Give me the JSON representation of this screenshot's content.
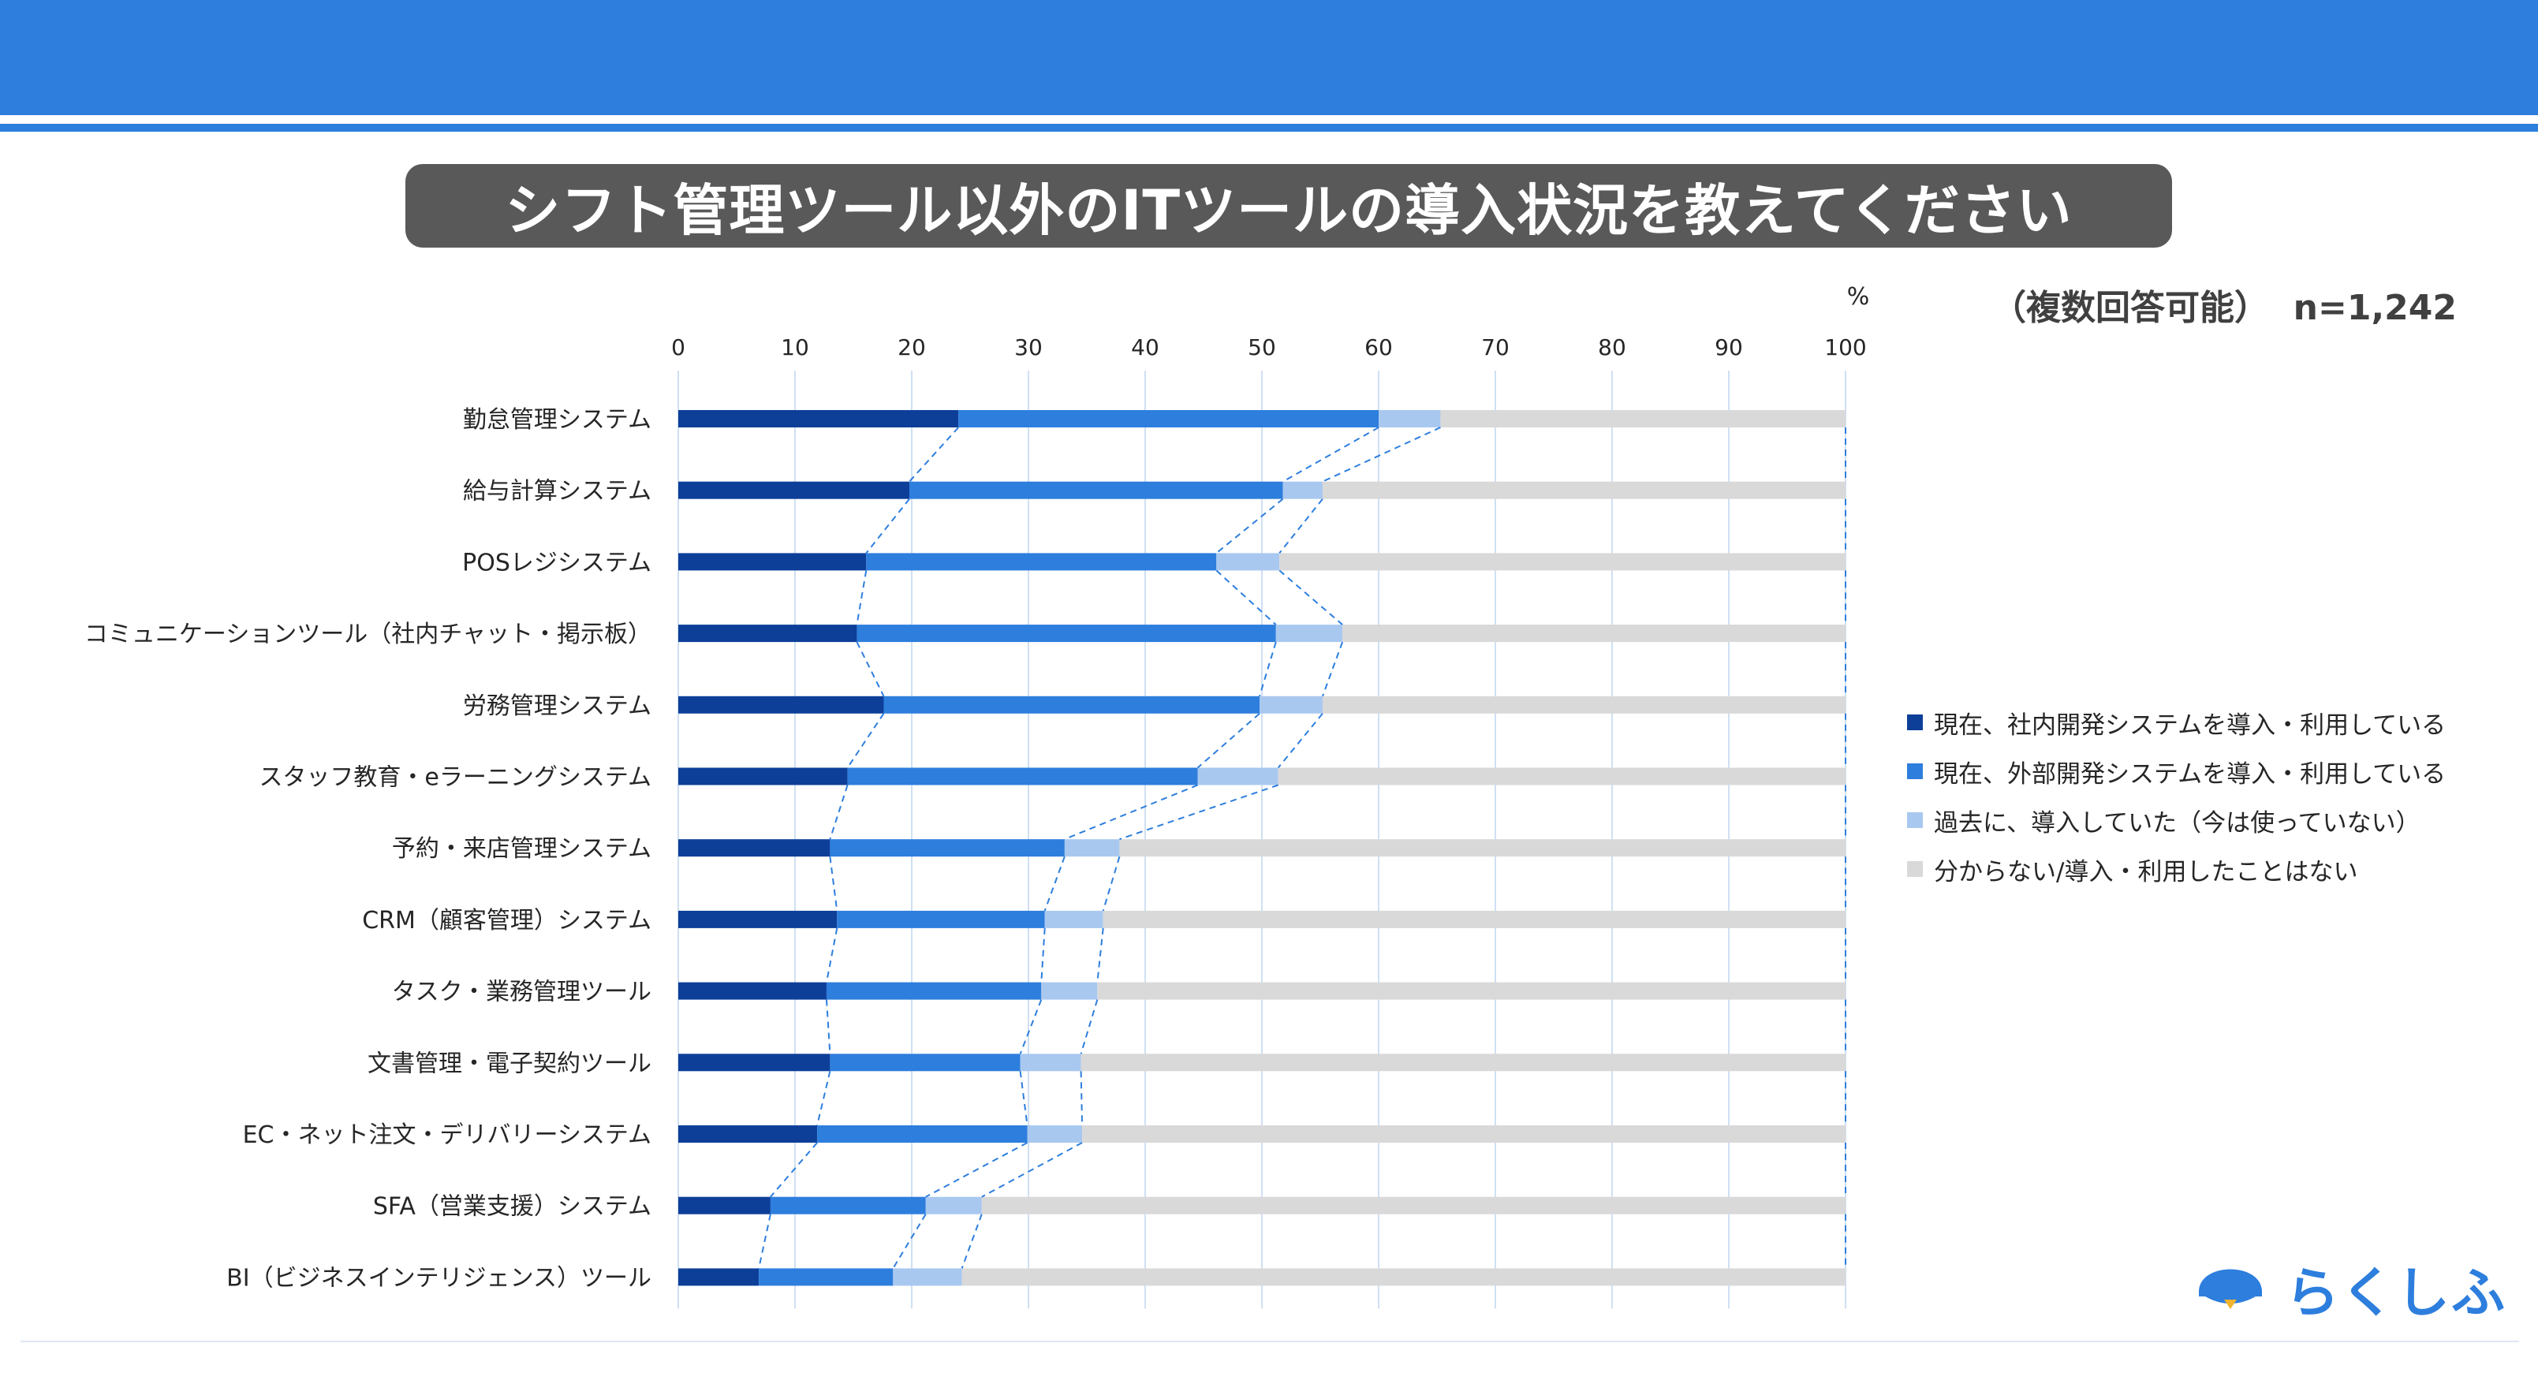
{
  "header": {
    "title": "シフト管理ツール以外のITツールの導入状況を教えてください",
    "note_multi": "（複数回答可能）",
    "note_n": "n=1,242",
    "colors": {
      "band": "#2d7edd",
      "pill": "#595959"
    }
  },
  "logo": {
    "text": "らくしふ",
    "icon": "penguin-logo-icon"
  },
  "chart_data": {
    "type": "bar",
    "orientation": "horizontal",
    "stacked": true,
    "unit_label": "%",
    "xlim": [
      0,
      100
    ],
    "ticks": [
      "0",
      "10",
      "20",
      "30",
      "40",
      "50",
      "60",
      "70",
      "80",
      "90",
      "100"
    ],
    "grid": true,
    "legend_position": "right",
    "categories": [
      "勤怠管理システム",
      "給与計算システム",
      "POSレジシステム",
      "コミュニケーションツール（社内チャット・掲示板）",
      "労務管理システム",
      "スタッフ教育・eラーニングシステム",
      "予約・来店管理システム",
      "CRM（顧客管理）システム",
      "タスク・業務管理ツール",
      "文書管理・電子契約ツール",
      "EC・ネット注文・デリバリーシステム",
      "SFA（営業支援）システム",
      "BI（ビジネスインテリジェンス）ツール"
    ],
    "series": [
      {
        "name": "現在、社内開発システムを導入・利用している",
        "color": "#0d3f99",
        "values": [
          24.0,
          19.8,
          16.1,
          15.3,
          17.6,
          14.5,
          13.0,
          13.6,
          12.7,
          13.0,
          11.9,
          7.9,
          6.9
        ]
      },
      {
        "name": "現在、外部開発システムを導入・利用している",
        "color": "#2d7edd",
        "values": [
          36.0,
          32.0,
          30.0,
          35.9,
          32.2,
          30.0,
          20.1,
          17.8,
          18.4,
          16.3,
          18.0,
          13.3,
          11.5
        ]
      },
      {
        "name": "過去に、導入していた（今は使っていない）",
        "color": "#a9c8f0",
        "values": [
          5.3,
          3.4,
          5.4,
          5.7,
          5.4,
          6.9,
          4.7,
          5.0,
          4.8,
          5.2,
          4.7,
          4.8,
          5.9
        ]
      },
      {
        "name": "分からない/導入・利用したことはない",
        "color": "#d9d9d9",
        "values": [
          34.7,
          44.8,
          48.5,
          43.1,
          44.8,
          48.6,
          62.2,
          63.6,
          64.1,
          65.5,
          65.4,
          74.0,
          75.7
        ]
      }
    ]
  }
}
